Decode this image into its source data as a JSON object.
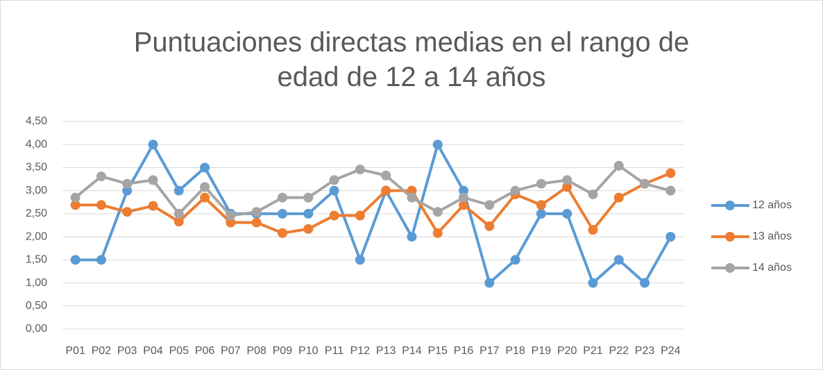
{
  "chart_data": {
    "type": "line",
    "title": "Puntuaciones directas medias en el rango de edad de 12 a 14 años",
    "categories": [
      "P01",
      "P02",
      "P03",
      "P04",
      "P05",
      "P06",
      "P07",
      "P08",
      "P09",
      "P10",
      "P11",
      "P12",
      "P13",
      "P14",
      "P15",
      "P16",
      "P17",
      "P18",
      "P19",
      "P20",
      "P21",
      "P22",
      "P23",
      "P24"
    ],
    "series": [
      {
        "name": "12 años",
        "color": "#5b9bd5",
        "values": [
          1.5,
          1.5,
          3,
          4,
          3,
          3.5,
          2.5,
          2.5,
          2.5,
          2.5,
          3,
          1.5,
          3,
          2,
          4,
          3,
          1,
          1.5,
          2.5,
          2.5,
          1,
          1.5,
          1,
          2
        ]
      },
      {
        "name": "13 años",
        "color": "#ed7d31",
        "values": [
          2.69,
          2.69,
          2.54,
          2.67,
          2.33,
          2.85,
          2.31,
          2.31,
          2.08,
          2.17,
          2.46,
          2.46,
          3,
          3,
          2.08,
          2.69,
          2.23,
          2.92,
          2.69,
          3.08,
          2.15,
          2.85,
          3.15,
          3.38
        ]
      },
      {
        "name": "14 años",
        "color": "#a5a5a5",
        "values": [
          2.85,
          3.31,
          3.15,
          3.23,
          2.5,
          3.08,
          2.46,
          2.54,
          2.85,
          2.85,
          3.23,
          3.46,
          3.33,
          2.85,
          2.54,
          2.85,
          2.69,
          3,
          3.15,
          3.23,
          2.92,
          3.54,
          3.15,
          3
        ]
      }
    ],
    "ylim": [
      0,
      4.5
    ],
    "yticks": [
      {
        "value": 0,
        "label": "0,00"
      },
      {
        "value": 0.5,
        "label": "0,50"
      },
      {
        "value": 1,
        "label": "1,00"
      },
      {
        "value": 1.5,
        "label": "1,50"
      },
      {
        "value": 2,
        "label": "2,00"
      },
      {
        "value": 2.5,
        "label": "2,50"
      },
      {
        "value": 3,
        "label": "3,00"
      },
      {
        "value": 3.5,
        "label": "3,50"
      },
      {
        "value": 4,
        "label": "4,00"
      },
      {
        "value": 4.5,
        "label": "4,50"
      }
    ],
    "grid": true,
    "legend": "right"
  }
}
